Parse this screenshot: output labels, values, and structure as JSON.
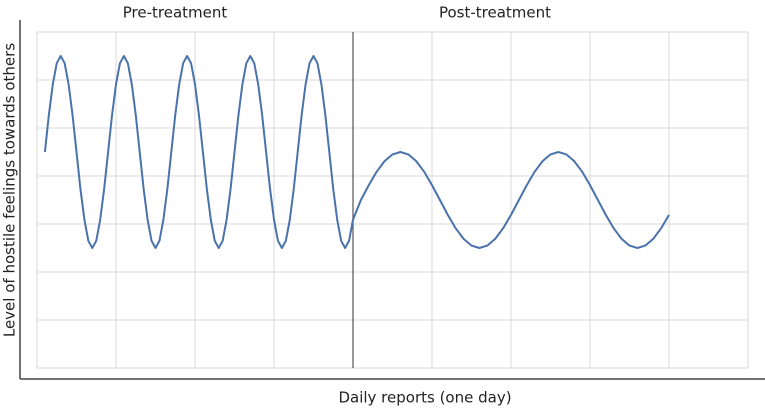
{
  "chart_data": {
    "type": "line",
    "x_label": "Daily reports (one day)",
    "y_label": "Level of hostile feelings towards others",
    "annotations": [
      "Pre-treatment",
      "Post-treatment"
    ],
    "vline_x": 4,
    "x": [
      0.1,
      0.15,
      0.2,
      0.25,
      0.3,
      0.35,
      0.4,
      0.45,
      0.5,
      0.55,
      0.6,
      0.65,
      0.7,
      0.75,
      0.8,
      0.85,
      0.9,
      0.95,
      1,
      1.05,
      1.1,
      1.15,
      1.2,
      1.25,
      1.3,
      1.35,
      1.4,
      1.45,
      1.5,
      1.55,
      1.6,
      1.65,
      1.7,
      1.75,
      1.8,
      1.85,
      1.9,
      1.95,
      2,
      2.05,
      2.1,
      2.15,
      2.2,
      2.25,
      2.3,
      2.35,
      2.4,
      2.45,
      2.5,
      2.55,
      2.6,
      2.65,
      2.7,
      2.75,
      2.8,
      2.85,
      2.9,
      2.95,
      3,
      3.05,
      3.1,
      3.15,
      3.2,
      3.25,
      3.3,
      3.35,
      3.4,
      3.45,
      3.5,
      3.55,
      3.6,
      3.65,
      3.7,
      3.75,
      3.8,
      3.85,
      3.9,
      3.95,
      4,
      4.1,
      4.2,
      4.3,
      4.4,
      4.5,
      4.6,
      4.7,
      4.8,
      4.9,
      5,
      5.1,
      5.2,
      5.3,
      5.4,
      5.5,
      5.6,
      5.7,
      5.8,
      5.9,
      6,
      6.1,
      6.2,
      6.3,
      6.4,
      6.5,
      6.6,
      6.7,
      6.8,
      6.9,
      7,
      7.1,
      7.2,
      7.3,
      7.4,
      7.5,
      7.6,
      7.7,
      7.8,
      7.9,
      8
    ],
    "values": [
      4.5,
      5.27,
      5.91,
      6.35,
      6.5,
      6.35,
      5.91,
      5.27,
      4.5,
      3.73,
      3.09,
      2.65,
      2.5,
      2.65,
      3.09,
      3.73,
      4.5,
      5.27,
      5.91,
      6.35,
      6.5,
      6.35,
      5.91,
      5.27,
      4.5,
      3.73,
      3.09,
      2.65,
      2.5,
      2.65,
      3.09,
      3.73,
      4.5,
      5.27,
      5.91,
      6.35,
      6.5,
      6.35,
      5.91,
      5.27,
      4.5,
      3.73,
      3.09,
      2.65,
      2.5,
      2.65,
      3.09,
      3.73,
      4.5,
      5.27,
      5.91,
      6.35,
      6.5,
      6.35,
      5.91,
      5.27,
      4.5,
      3.73,
      3.09,
      2.65,
      2.5,
      2.65,
      3.09,
      3.73,
      4.5,
      5.27,
      5.91,
      6.35,
      6.5,
      6.35,
      5.91,
      5.27,
      4.5,
      3.73,
      3.09,
      2.65,
      2.5,
      2.65,
      3.09,
      3.5,
      3.81,
      4.09,
      4.31,
      4.45,
      4.5,
      4.45,
      4.31,
      4.09,
      3.81,
      3.5,
      3.19,
      2.91,
      2.69,
      2.55,
      2.5,
      2.55,
      2.69,
      2.91,
      3.19,
      3.5,
      3.81,
      4.09,
      4.31,
      4.45,
      4.5,
      4.45,
      4.31,
      4.09,
      3.81,
      3.5,
      3.19,
      2.91,
      2.69,
      2.55,
      2.5,
      2.55,
      2.69,
      2.91,
      3.19
    ],
    "color": "#4a72ac",
    "xlim": [
      0,
      9
    ],
    "xticks": [
      0,
      1,
      2,
      3,
      4,
      5,
      6,
      7,
      8,
      9
    ],
    "ylim": [
      0,
      7
    ],
    "yticks": [
      0,
      1,
      2,
      3,
      4,
      5,
      6,
      7
    ],
    "grid": true
  }
}
